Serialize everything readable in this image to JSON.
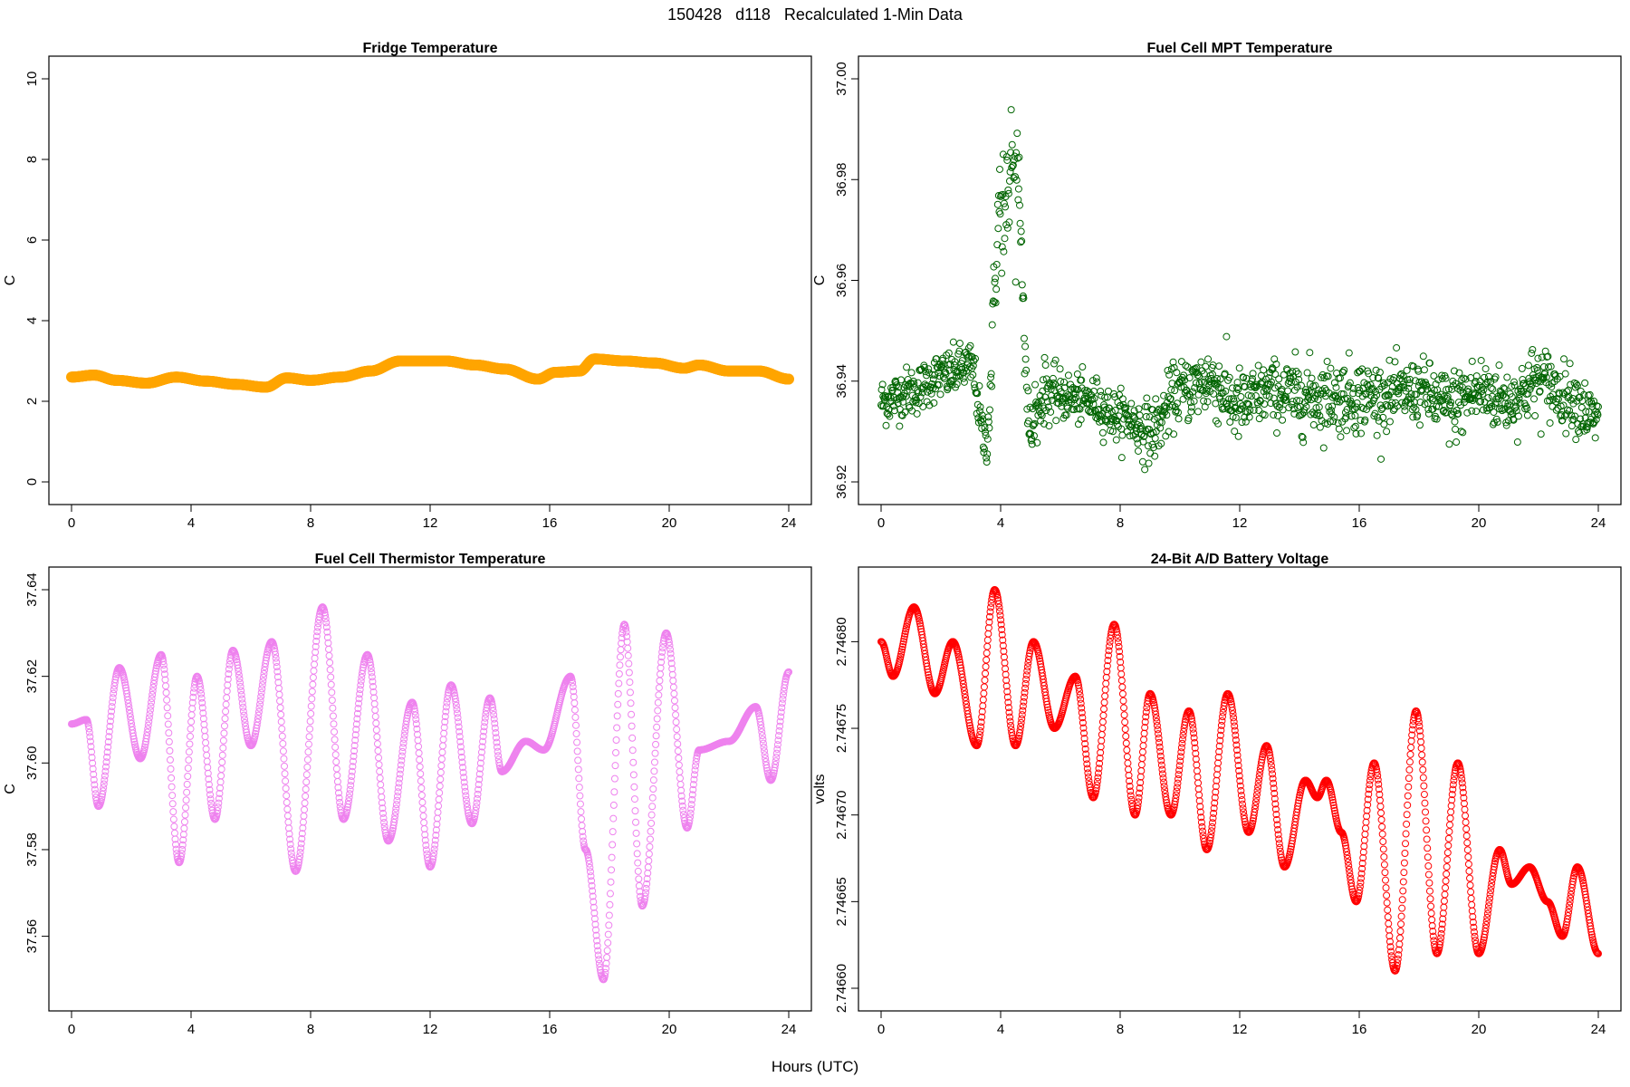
{
  "title": "150428   d118   Recalculated 1-Min Data",
  "xlabel": "Hours (UTC)",
  "colors": {
    "fridge": "#FFA500",
    "mpt": "#006400",
    "thermistor": "#EE82EE",
    "battery": "#FF0000",
    "axis": "#000000",
    "background": "#FFFFFF"
  },
  "chart_data": [
    {
      "id": "fridge",
      "type": "scatter",
      "title": "Fridge Temperature",
      "xlabel": "",
      "ylabel": "C",
      "xlim": [
        0,
        24
      ],
      "ylim": [
        0,
        10
      ],
      "xticks": [
        "0",
        "4",
        "8",
        "12",
        "16",
        "20",
        "24"
      ],
      "yticks": [
        "0",
        "2",
        "4",
        "6",
        "8",
        "10"
      ],
      "style": "thick",
      "x": [
        0,
        0.75,
        1.5,
        2.5,
        3.5,
        4.5,
        5.5,
        6.5,
        7.2,
        8.0,
        9.0,
        10.0,
        11.0,
        12.5,
        13.5,
        14.5,
        15.6,
        16.2,
        17.0,
        17.5,
        18.5,
        19.5,
        20.5,
        21.0,
        22.0,
        23.0,
        24.0
      ],
      "values": [
        2.6,
        2.65,
        2.52,
        2.45,
        2.6,
        2.5,
        2.42,
        2.35,
        2.58,
        2.52,
        2.6,
        2.75,
        3.0,
        3.0,
        2.9,
        2.8,
        2.55,
        2.72,
        2.75,
        3.05,
        3.0,
        2.95,
        2.82,
        2.9,
        2.75,
        2.75,
        2.55
      ]
    },
    {
      "id": "mpt",
      "type": "scatter",
      "title": "Fuel Cell MPT Temperature",
      "xlabel": "",
      "ylabel": "C",
      "xlim": [
        0,
        24
      ],
      "ylim": [
        36.92,
        37.0
      ],
      "xticks": [
        "0",
        "4",
        "8",
        "12",
        "16",
        "20",
        "24"
      ],
      "yticks": [
        "36.92",
        "36.94",
        "36.96",
        "36.98",
        "37.00"
      ],
      "noise": "gaussian",
      "x": [
        0,
        1,
        2,
        3,
        3.5,
        4.0,
        4.5,
        5.0,
        5.5,
        6,
        7,
        8,
        9,
        10,
        11,
        12,
        13,
        14,
        15,
        16,
        17,
        18,
        19,
        20,
        21,
        22,
        23,
        24
      ],
      "values": [
        36.936,
        36.938,
        36.941,
        36.943,
        36.928,
        36.975,
        36.985,
        36.93,
        36.938,
        36.937,
        36.936,
        36.933,
        36.93,
        36.938,
        36.94,
        36.935,
        36.938,
        36.937,
        36.937,
        36.937,
        36.937,
        36.938,
        36.935,
        36.938,
        36.936,
        36.94,
        36.937,
        36.932
      ],
      "spread": [
        0.004,
        0.004,
        0.004,
        0.004,
        0.004,
        0.01,
        0.008,
        0.004,
        0.005,
        0.004,
        0.004,
        0.004,
        0.005,
        0.005,
        0.006,
        0.006,
        0.005,
        0.006,
        0.006,
        0.006,
        0.005,
        0.005,
        0.006,
        0.006,
        0.005,
        0.006,
        0.005,
        0.005
      ]
    },
    {
      "id": "thermistor",
      "type": "scatter",
      "title": "Fuel Cell Thermistor Temperature",
      "xlabel": "",
      "ylabel": "C",
      "xlim": [
        0,
        24
      ],
      "ylim": [
        37.548,
        37.64
      ],
      "xticks": [
        "0",
        "4",
        "8",
        "12",
        "16",
        "20",
        "24"
      ],
      "yticks": [
        "37.56",
        "37.58",
        "37.60",
        "37.62",
        "37.64"
      ],
      "x": [
        0,
        0.5,
        0.9,
        1.6,
        2.3,
        3.0,
        3.6,
        4.2,
        4.8,
        5.4,
        6.0,
        6.7,
        7.5,
        8.4,
        9.1,
        9.9,
        10.6,
        11.4,
        12.0,
        12.7,
        13.4,
        14.0,
        14.4,
        15.2,
        15.8,
        16.7,
        17.2,
        17.8,
        18.5,
        19.1,
        19.9,
        20.6,
        21.0,
        22.0,
        22.9,
        23.4,
        24.0
      ],
      "values": [
        37.609,
        37.61,
        37.59,
        37.622,
        37.601,
        37.625,
        37.577,
        37.62,
        37.587,
        37.626,
        37.604,
        37.628,
        37.575,
        37.636,
        37.587,
        37.625,
        37.582,
        37.614,
        37.576,
        37.618,
        37.586,
        37.615,
        37.598,
        37.605,
        37.603,
        37.62,
        37.58,
        37.55,
        37.632,
        37.567,
        37.63,
        37.585,
        37.603,
        37.605,
        37.613,
        37.596,
        37.621
      ]
    },
    {
      "id": "battery",
      "type": "scatter",
      "title": "24-Bit A/D Battery Voltage",
      "xlabel": "",
      "ylabel": "volts",
      "xlim": [
        0,
        24
      ],
      "ylim": [
        2.7466,
        2.74683
      ],
      "xticks": [
        "0",
        "4",
        "8",
        "12",
        "16",
        "20",
        "24"
      ],
      "yticks": [
        "2.74660",
        "2.74665",
        "2.74670",
        "2.74675",
        "2.74680"
      ],
      "x": [
        0,
        0.4,
        1.1,
        1.8,
        2.4,
        3.2,
        3.8,
        4.5,
        5.1,
        5.8,
        6.5,
        7.1,
        7.8,
        8.5,
        9.0,
        9.7,
        10.3,
        10.9,
        11.6,
        12.3,
        12.9,
        13.5,
        14.2,
        14.6,
        14.9,
        15.4,
        15.9,
        16.5,
        17.2,
        17.9,
        18.6,
        19.3,
        20.0,
        20.7,
        21.1,
        21.7,
        22.3,
        22.8,
        23.3,
        24.0
      ]
    },
    {
      "id": "battery-values",
      "type": "series",
      "title": "",
      "values": [
        2.7468,
        2.74678,
        2.74682,
        2.74677,
        2.7468,
        2.74674,
        2.74683,
        2.74674,
        2.7468,
        2.74675,
        2.74678,
        2.74671,
        2.74681,
        2.7467,
        2.74677,
        2.7467,
        2.74676,
        2.74668,
        2.74677,
        2.74669,
        2.74674,
        2.74667,
        2.74672,
        2.74671,
        2.74672,
        2.74669,
        2.74665,
        2.74673,
        2.74661,
        2.74676,
        2.74662,
        2.74673,
        2.74662,
        2.74668,
        2.74666,
        2.74667,
        2.74665,
        2.74663,
        2.74667,
        2.74662
      ]
    }
  ]
}
